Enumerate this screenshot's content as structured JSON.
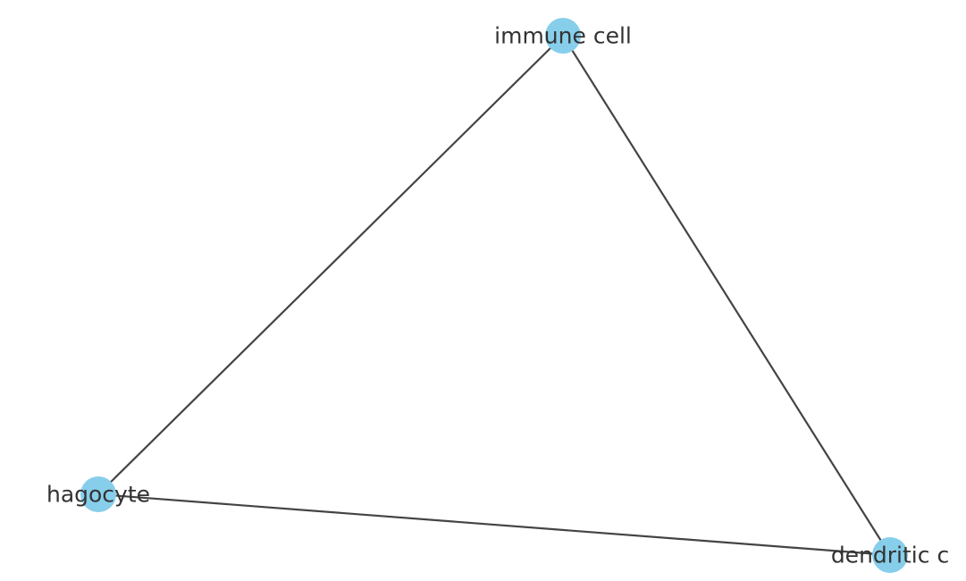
{
  "diagram": {
    "node_color": "#87CEEB",
    "edge_color": "#444444",
    "label_color": "#333333",
    "nodes": [
      {
        "id": "immune",
        "label": "immune cell"
      },
      {
        "id": "hagocyte",
        "label": "hagocyte"
      },
      {
        "id": "dendritic",
        "label": "dendritic c"
      }
    ],
    "edges": [
      {
        "source": "immune",
        "target": "hagocyte"
      },
      {
        "source": "immune",
        "target": "dendritic"
      },
      {
        "source": "hagocyte",
        "target": "dendritic"
      }
    ]
  }
}
